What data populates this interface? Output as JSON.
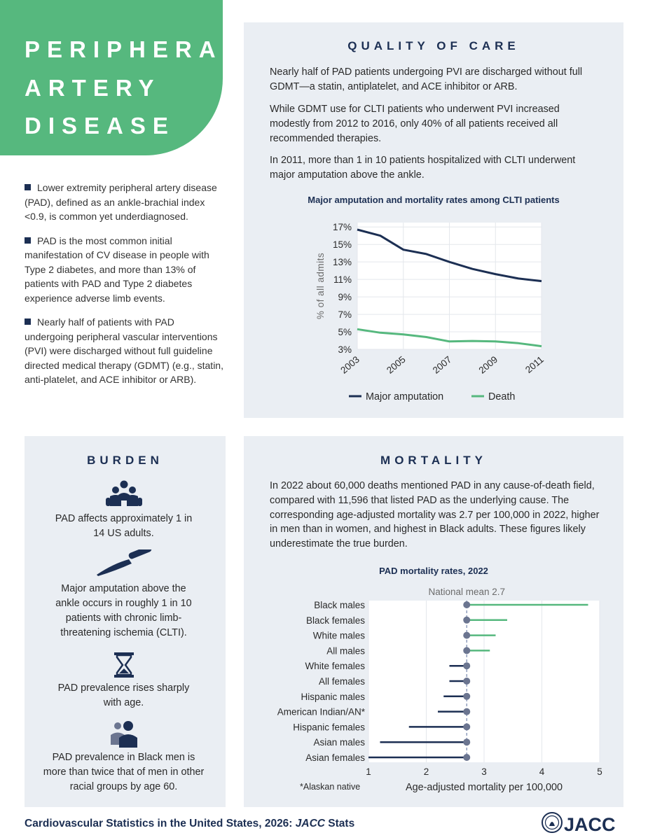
{
  "title": {
    "lines": [
      "PERIPHERAL",
      "ARTERY",
      "DISEASE"
    ]
  },
  "intro_bullets": [
    "Lower extremity peripheral artery disease (PAD), defined as an ankle-brachial index <0.9, is common yet underdiagnosed.",
    "PAD is the most common initial manifestation of CV disease in people with Type 2 diabetes, and more than 13% of patients with PAD and Type 2 diabetes experience adverse limb events.",
    "Nearly half of patients with PAD undergoing peripheral vascular interventions (PVI) were discharged without full guideline directed medical therapy (GDMT) (e.g., statin, anti-platelet, and ACE inhibitor or ARB)."
  ],
  "quality": {
    "heading": "QUALITY OF CARE",
    "paragraphs": [
      "Nearly half of PAD patients undergoing PVI are discharged without full GDMT—a statin, antiplatelet, and ACE inhibitor or ARB.",
      "While GDMT use for CLTI patients who underwent PVI increased modestly from 2012 to 2016, only 40% of all patients received all recommended therapies.",
      "In 2011, more than 1 in 10 patients hospitalized with CLTI underwent major amputation above the ankle."
    ]
  },
  "burden": {
    "heading": "BURDEN",
    "items": [
      {
        "icon": "people-group-icon",
        "text": "PAD affects approximately 1 in 14 US adults."
      },
      {
        "icon": "scalpel-icon",
        "text": "Major amputation above the ankle occurs in roughly 1 in 10 patients with chronic limb-threatening ischemia (CLTI)."
      },
      {
        "icon": "hourglass-icon",
        "text": "PAD prevalence rises sharply with age."
      },
      {
        "icon": "two-men-icon",
        "text": "PAD prevalence in Black men is more than twice that of men in other racial groups by age 60."
      }
    ]
  },
  "mortality": {
    "heading": "MORTALITY",
    "paragraph": "In 2022 about 60,000 deaths mentioned PAD in any cause-of-death field, compared with 11,596 that listed PAD as the underlying cause. The corresponding age-adjusted mortality was 2.7 per 100,000 in 2022, higher in men than in women, and highest in Black adults. These figures likely underestimate the true burden.",
    "footnote": "*Alaskan native"
  },
  "footer": {
    "text_prefix": "Cardiovascular Statistics in the United States, 2026: ",
    "text_italic": "JACC",
    "text_suffix": " Stats",
    "logo_text": "JACC"
  },
  "colors": {
    "navy": "#1c2f53",
    "green": "#56b87e",
    "panel": "#eaeef3",
    "gray_dot": "#6b7590"
  },
  "chart_data": [
    {
      "type": "line",
      "title": "Major amputation and mortality rates among CLTI patients",
      "ylabel": "% of all admits",
      "xlabel": "",
      "x": [
        2003,
        2004,
        2005,
        2006,
        2007,
        2008,
        2009,
        2010,
        2011
      ],
      "xticks": [
        "2003",
        "2005",
        "2007",
        "2009",
        "2011"
      ],
      "yticks": [
        "3%",
        "5%",
        "7%",
        "9%",
        "11%",
        "13%",
        "15%",
        "17%"
      ],
      "ylim": [
        3,
        17.5
      ],
      "series": [
        {
          "name": "Major amputation",
          "color": "#1c2f53",
          "values": [
            16.7,
            16.0,
            14.4,
            13.9,
            13.0,
            12.2,
            11.6,
            11.1,
            10.8
          ]
        },
        {
          "name": "Death",
          "color": "#56b87e",
          "values": [
            5.3,
            4.9,
            4.7,
            4.4,
            3.9,
            3.95,
            3.9,
            3.7,
            3.35
          ]
        }
      ],
      "legend": "bottom"
    },
    {
      "type": "lollipop",
      "title": "PAD mortality rates, 2022",
      "reference_label": "National mean 2.7",
      "reference": 2.7,
      "xlabel": "Age-adjusted mortality per 100,000",
      "xlim": [
        1,
        5
      ],
      "xticks": [
        "1",
        "2",
        "3",
        "4",
        "5"
      ],
      "categories": [
        "Black males",
        "Black females",
        "White males",
        "All males",
        "White females",
        "All females",
        "Hispanic males",
        "American Indian/AN*",
        "Hispanic females",
        "Asian males",
        "Asian females"
      ],
      "values": [
        4.8,
        3.4,
        3.2,
        3.1,
        2.4,
        2.4,
        2.3,
        2.2,
        1.7,
        1.2,
        1.0
      ]
    }
  ]
}
